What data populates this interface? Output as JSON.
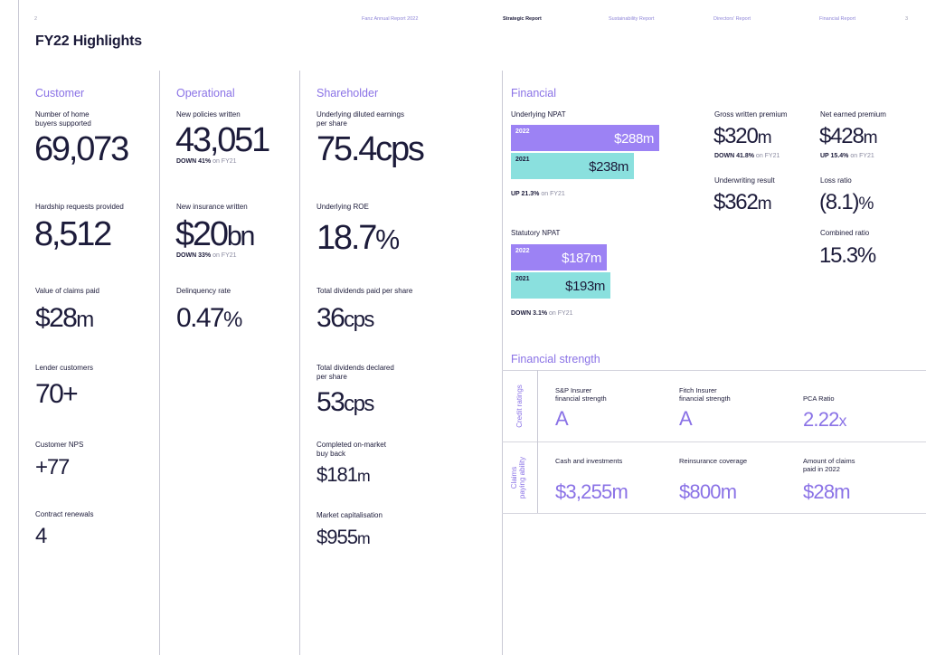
{
  "header": {
    "page_left": "2",
    "nav": [
      "Fanz Annual Report 2022",
      "Strategic Report",
      "Sustainability Report",
      "Directors' Report",
      "Financial Report"
    ],
    "page_right": "3"
  },
  "title": "FY22 Highlights",
  "customer": {
    "heading": "Customer",
    "items": [
      {
        "label": "Number of home\nbuyers supported",
        "value": "69,073"
      },
      {
        "label": "Hardship requests provided",
        "value": "8,512"
      },
      {
        "label": "Value of claims paid",
        "value_pre": "$28",
        "value_unit": "m"
      },
      {
        "label": "Lender customers",
        "value": "70+"
      },
      {
        "label": "Customer NPS",
        "value": "+77"
      },
      {
        "label": "Contract renewals",
        "value": "4"
      }
    ]
  },
  "operational": {
    "heading": "Operational",
    "items": [
      {
        "label": "New policies written",
        "value": "43,051",
        "change_dir": "DOWN 41%",
        "change_ref": "on FY21"
      },
      {
        "label": "New insurance written",
        "value_pre": "$20",
        "value_unit": "bn",
        "change_dir": "DOWN 33%",
        "change_ref": "on FY21"
      },
      {
        "label": "Delinquency rate",
        "value_pre": "0.47",
        "value_unit": "%"
      }
    ]
  },
  "shareholder": {
    "heading": "Shareholder",
    "items": [
      {
        "label": "Underlying diluted earnings\nper share",
        "value_pre": "75.4",
        "value_unit": "cps"
      },
      {
        "label": "Underlying ROE",
        "value_pre": "18.7",
        "value_unit": "%"
      },
      {
        "label": "Total dividends paid per share",
        "value_pre": "36",
        "value_unit": "cps"
      },
      {
        "label": "Total dividends declared\nper share",
        "value_pre": "53",
        "value_unit": "cps"
      },
      {
        "label": "Completed on-market\nbuy back",
        "value_pre": "$181",
        "value_unit": "m"
      },
      {
        "label": "Market capitalisation",
        "value_pre": "$955",
        "value_unit": "m"
      }
    ]
  },
  "financial": {
    "heading": "Financial",
    "npat": {
      "label": "Underlying NPAT",
      "bars": [
        {
          "year": "2022",
          "value": "$288m",
          "amount": 288
        },
        {
          "year": "2021",
          "value": "$238m",
          "amount": 238
        }
      ],
      "change_dir": "UP 21.3%",
      "change_ref": "on FY21"
    },
    "statutory": {
      "label": "Statutory NPAT",
      "bars": [
        {
          "year": "2022",
          "value": "$187m",
          "amount": 187
        },
        {
          "year": "2021",
          "value": "$193m",
          "amount": 193
        }
      ],
      "change_dir": "DOWN 3.1%",
      "change_ref": "on FY21"
    },
    "gwp": {
      "label": "Gross written premium",
      "value_pre": "$320",
      "value_unit": "m",
      "change_dir": "DOWN 41.8%",
      "change_ref": "on FY21"
    },
    "nep": {
      "label": "Net earned premium",
      "value_pre": "$428",
      "value_unit": "m",
      "change_dir": "UP 15.4%",
      "change_ref": "on FY21"
    },
    "uw": {
      "label": "Underwriting result",
      "value_pre": "$362",
      "value_unit": "m"
    },
    "loss": {
      "label": "Loss ratio",
      "value_pre": "(8.1)",
      "value_unit": "%"
    },
    "combined": {
      "label": "Combined ratio",
      "value": "15.3%"
    }
  },
  "strength": {
    "heading": "Financial strength",
    "row1_label": "Credit ratings",
    "row2_label": "Claims\npaying ability",
    "row1": [
      {
        "label": "S&P Insurer\nfinancial strength",
        "value": "A"
      },
      {
        "label": "Fitch Insurer\nfinancial strength",
        "value": "A"
      },
      {
        "label": "PCA Ratio",
        "value_pre": "2.22",
        "value_unit": "x"
      }
    ],
    "row2": [
      {
        "label": "Cash and investments",
        "value": "$3,255m"
      },
      {
        "label": "Reinsurance coverage",
        "value": "$800m"
      },
      {
        "label": "Amount of claims\npaid in 2022",
        "value": "$28m"
      }
    ]
  },
  "colors": {
    "purple": "#9c82f4",
    "teal": "#8ae0de",
    "accent": "#8a72e6",
    "ink": "#1c1b3a"
  }
}
